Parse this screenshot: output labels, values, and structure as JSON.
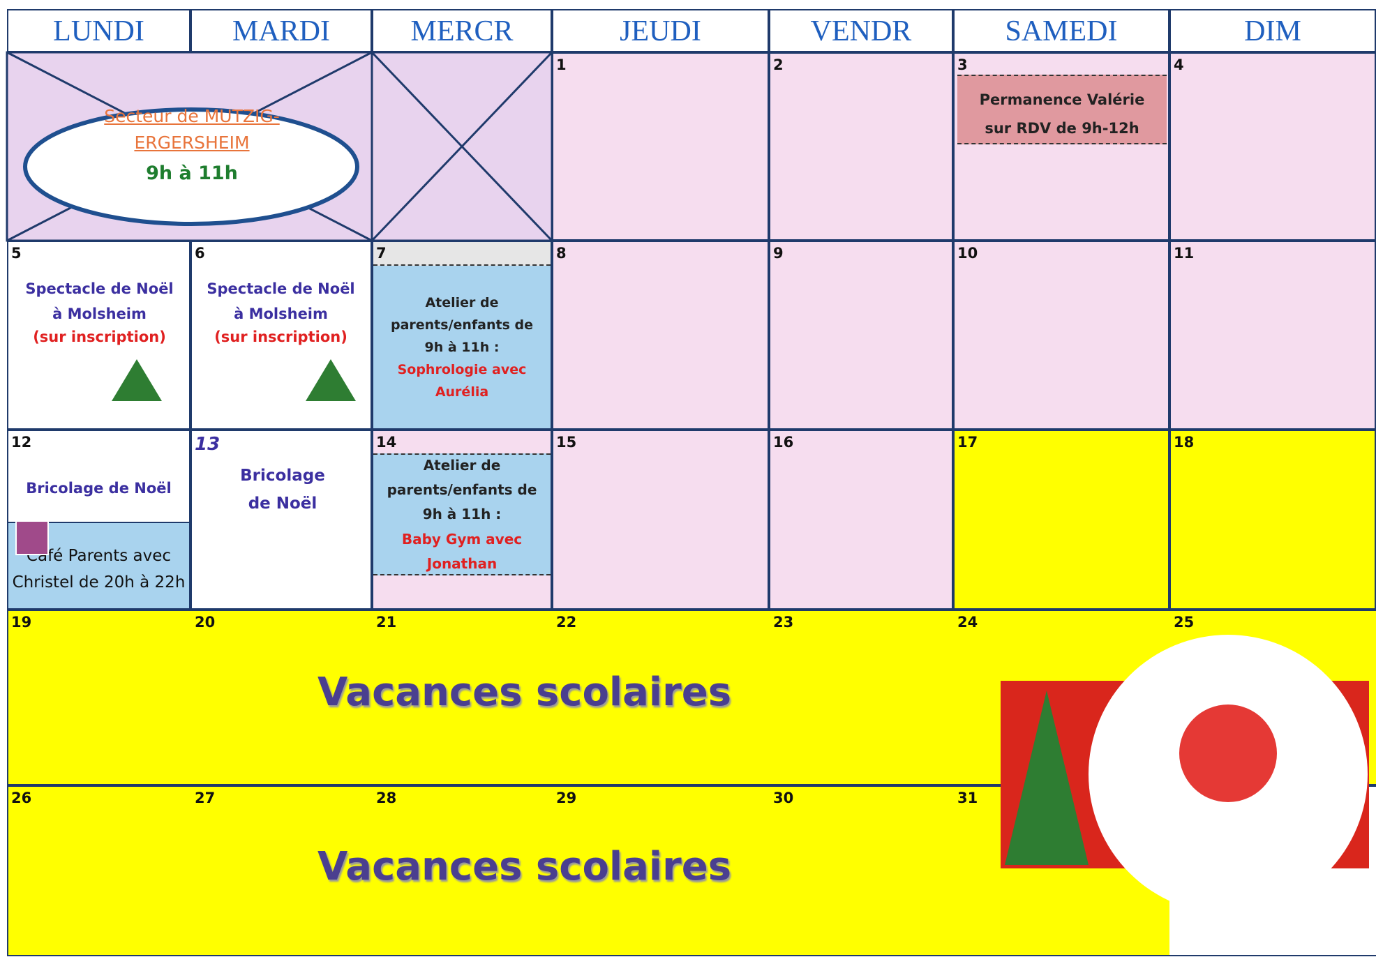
{
  "weekdays": [
    "LUNDI",
    "MARDI",
    "MERCR",
    "JEUDI",
    "VENDR",
    "SAMEDI",
    "DIM"
  ],
  "first_weekday_index": 3,
  "sector": {
    "name": "Secteur de MUTZIG-ERGERSHEIM",
    "hours": "9h à 11h"
  },
  "days": [
    {
      "n": 1,
      "bg": "#f6ddef"
    },
    {
      "n": 2,
      "bg": "#f6ddef"
    },
    {
      "n": 3,
      "bg": "#f6ddef"
    },
    {
      "n": 4,
      "bg": "#f6ddef"
    },
    {
      "n": 5,
      "bg": "#ffffff"
    },
    {
      "n": 6,
      "bg": "#ffffff"
    },
    {
      "n": 7,
      "bg": "#a9d3ee"
    },
    {
      "n": 8,
      "bg": "#f6ddef"
    },
    {
      "n": 9,
      "bg": "#f6ddef"
    },
    {
      "n": 10,
      "bg": "#f6ddef"
    },
    {
      "n": 11,
      "bg": "#f6ddef"
    },
    {
      "n": 12,
      "bg": "#ffffff"
    },
    {
      "n": 13,
      "bg": "#ffffff"
    },
    {
      "n": 14,
      "bg": "#f6ddef"
    },
    {
      "n": 15,
      "bg": "#f6ddef"
    },
    {
      "n": 16,
      "bg": "#f6ddef"
    },
    {
      "n": 17,
      "bg": "#ffff00"
    },
    {
      "n": 18,
      "bg": "#ffff00"
    },
    {
      "n": 19,
      "bg": "#ffff00"
    },
    {
      "n": 20,
      "bg": "#ffff00"
    },
    {
      "n": 21,
      "bg": "#ffff00"
    },
    {
      "n": 22,
      "bg": "#ffff00"
    },
    {
      "n": 23,
      "bg": "#ffff00"
    },
    {
      "n": 24,
      "bg": "#ffff00"
    },
    {
      "n": 25,
      "bg": "#ffff00"
    },
    {
      "n": 26,
      "bg": "#ffff00"
    },
    {
      "n": 27,
      "bg": "#ffff00"
    },
    {
      "n": 28,
      "bg": "#ffff00"
    },
    {
      "n": 29,
      "bg": "#ffff00"
    },
    {
      "n": 30,
      "bg": "#ffff00"
    },
    {
      "n": 31,
      "bg": "#ffff00"
    }
  ],
  "events": [
    {
      "title": "Permanence Valérie",
      "detail": "sur RDV de 9h-12h"
    },
    {
      "title": "Spectacle de Noël à Molsheim",
      "detail": "(sur inscription)"
    },
    {
      "title": "Spectacle de Noël à Molsheim",
      "detail": "(sur inscription)"
    },
    {
      "title": "Atelier de parents/enfants de 9h à 11h :",
      "detail": "Sophrologie avec Aurélia"
    },
    {
      "title": "Bricolage de Noël",
      "detail": "Café Parents avec Christel de 20h à 22h"
    },
    {
      "title": "Bricolage de Noël"
    },
    {
      "title": "Atelier de parents/enfants de 9h à 11h :",
      "detail": "Baby Gym avec Jonathan"
    }
  ],
  "holidays": [
    "Vacances scolaires",
    "Vacances scolaires"
  ]
}
